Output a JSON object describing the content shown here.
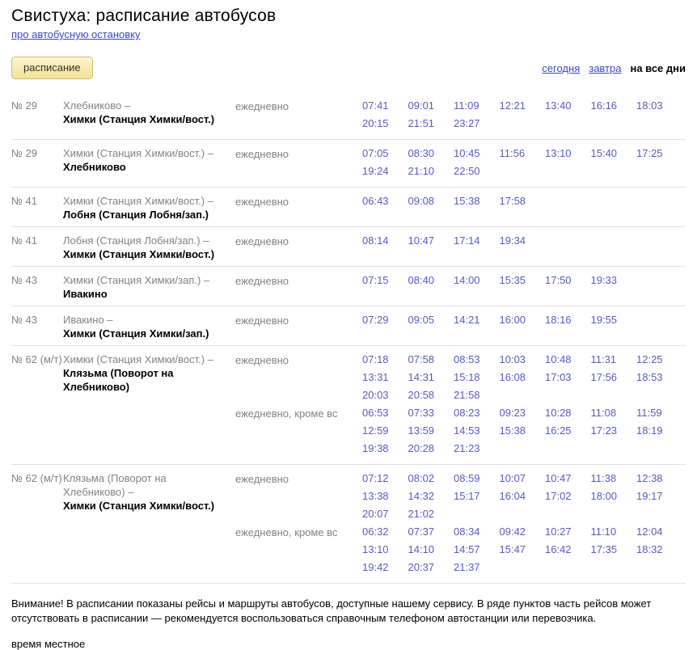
{
  "header": {
    "title": "Свистуха: расписание автобусов",
    "about_link": "про автобусную остановку",
    "schedule_button": "расписание",
    "day_filters": {
      "today": "сегодня",
      "tomorrow": "завтра",
      "all_days": "на все дни"
    }
  },
  "colors": {
    "link": "#3a47c6",
    "time_link": "#585ac6",
    "muted_text": "#828282",
    "separator": "#e2e2e2",
    "button_bg_top": "#fcf5cd",
    "button_bg_bottom": "#f3e29a",
    "button_border": "#cfb768"
  },
  "rows": [
    {
      "number": "№ 29",
      "origin": "Хлебниково –",
      "destination": "Химки (Станция Химки/вост.)",
      "groups": [
        {
          "days": "ежедневно",
          "times": [
            "07:41",
            "09:01",
            "11:09",
            "12:21",
            "13:40",
            "16:16",
            "18:03",
            "20:15",
            "21:51",
            "23:27"
          ]
        }
      ]
    },
    {
      "number": "№ 29",
      "origin": "Химки (Станция Химки/вост.) –",
      "destination": "Хлебниково",
      "groups": [
        {
          "days": "ежедневно",
          "times": [
            "07:05",
            "08:30",
            "10:45",
            "11:56",
            "13:10",
            "15:40",
            "17:25",
            "19:24",
            "21:10",
            "22:50"
          ]
        }
      ]
    },
    {
      "number": "№ 41",
      "origin": "Химки (Станция Химки/вост.) –",
      "destination": "Лобня (Станция Лобня/зап.)",
      "groups": [
        {
          "days": "ежедневно",
          "times": [
            "06:43",
            "09:08",
            "15:38",
            "17:58"
          ]
        }
      ]
    },
    {
      "number": "№ 41",
      "origin": "Лобня (Станция Лобня/зап.) –",
      "destination": "Химки (Станция Химки/вост.)",
      "groups": [
        {
          "days": "ежедневно",
          "times": [
            "08:14",
            "10:47",
            "17:14",
            "19:34"
          ]
        }
      ]
    },
    {
      "number": "№ 43",
      "origin": "Химки (Станция Химки/зап.) –",
      "destination": "Ивакино",
      "groups": [
        {
          "days": "ежедневно",
          "times": [
            "07:15",
            "08:40",
            "14:00",
            "15:35",
            "17:50",
            "19:33"
          ]
        }
      ]
    },
    {
      "number": "№ 43",
      "origin": "Ивакино –",
      "destination": "Химки (Станция Химки/зап.)",
      "groups": [
        {
          "days": "ежедневно",
          "times": [
            "07:29",
            "09:05",
            "14:21",
            "16:00",
            "18:16",
            "19:55"
          ]
        }
      ]
    },
    {
      "number": "№ 62 (м/т)",
      "origin": "Химки (Станция Химки/вост.) –",
      "destination": "Клязьма (Поворот на\nХлебниково)",
      "groups": [
        {
          "days": "ежедневно",
          "times": [
            "07:18",
            "07:58",
            "08:53",
            "10:03",
            "10:48",
            "11:31",
            "12:25",
            "13:31",
            "14:31",
            "15:18",
            "16:08",
            "17:03",
            "17:56",
            "18:53",
            "20:03",
            "20:58",
            "21:58"
          ]
        },
        {
          "days": "ежедневно, кроме вс",
          "times": [
            "06:53",
            "07:33",
            "08:23",
            "09:23",
            "10:28",
            "11:08",
            "11:59",
            "12:59",
            "13:59",
            "14:53",
            "15:38",
            "16:25",
            "17:23",
            "18:19",
            "19:38",
            "20:28",
            "21:23"
          ]
        }
      ]
    },
    {
      "number": "№ 62 (м/т)",
      "origin": "Клязьма (Поворот на\nХлебниково) –",
      "destination": "Химки (Станция Химки/вост.)",
      "groups": [
        {
          "days": "ежедневно",
          "times": [
            "07:12",
            "08:02",
            "08:59",
            "10:07",
            "10:47",
            "11:38",
            "12:38",
            "13:38",
            "14:32",
            "15:17",
            "16:04",
            "17:02",
            "18:00",
            "19:17",
            "20:07",
            "21:02"
          ]
        },
        {
          "days": "ежедневно, кроме вс",
          "times": [
            "06:32",
            "07:37",
            "08:34",
            "09:42",
            "10:27",
            "11:10",
            "12:04",
            "13:10",
            "14:10",
            "14:57",
            "15:47",
            "16:42",
            "17:35",
            "18:32",
            "19:42",
            "20:37",
            "21:37"
          ]
        }
      ]
    }
  ],
  "footer": {
    "notice": "Внимание! В расписании показаны рейсы и маршруты автобусов, доступные нашему сервису. В ряде пунктов часть рейсов может отсутствовать в расписании — рекомендуется воспользоваться справочным телефоном автостанции или перевозчика.",
    "local_time_note": "время местное"
  }
}
